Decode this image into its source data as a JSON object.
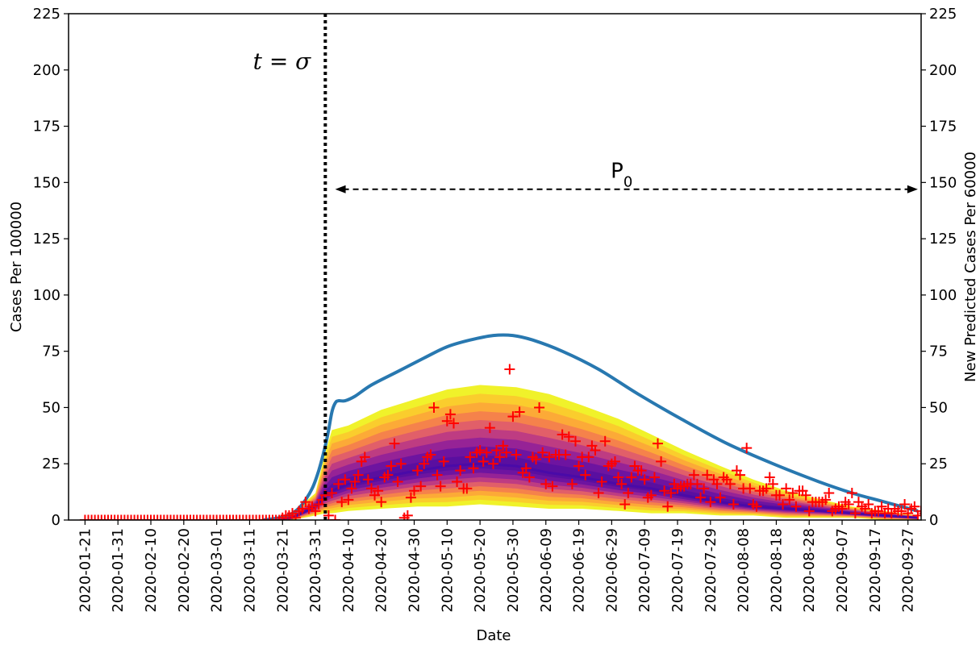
{
  "chart_data": {
    "type": "line",
    "x_type": "date",
    "ylabel_left": "Cases Per 100000",
    "ylabel_right": "New Predicted Cases Per 60000",
    "xlabel": "Date",
    "ylim_left": [
      0,
      225
    ],
    "ylim_right": [
      0,
      225
    ],
    "y_ticks": [
      0,
      25,
      50,
      75,
      100,
      125,
      150,
      175,
      200,
      225
    ],
    "xlim": [
      "2020-01-16",
      "2020-10-01"
    ],
    "x_ticks": [
      "2020-01-21",
      "2020-01-31",
      "2020-02-10",
      "2020-02-20",
      "2020-03-01",
      "2020-03-11",
      "2020-03-21",
      "2020-03-31",
      "2020-04-10",
      "2020-04-20",
      "2020-04-30",
      "2020-05-10",
      "2020-05-20",
      "2020-05-30",
      "2020-06-09",
      "2020-06-19",
      "2020-06-29",
      "2020-07-09",
      "2020-07-19",
      "2020-07-29",
      "2020-08-08",
      "2020-08-18",
      "2020-08-28",
      "2020-09-07",
      "2020-09-17",
      "2020-09-27"
    ],
    "grid": false,
    "colors": {
      "curve": "#2878b0",
      "observed": "#ff0000",
      "band_outer": "#f0f22a",
      "band_inner": "#5a0fa0"
    },
    "annotations": {
      "t_sigma_label": "t = σ",
      "t_sigma_date": "2020-04-03",
      "p0_label": "P",
      "p0_subscript": "0",
      "p0_arrow": {
        "from": "2020-04-06",
        "to": "2020-09-30",
        "y": 147
      }
    },
    "series": [
      {
        "kind": "line",
        "points": [
          [
            "2020-03-15",
            0
          ],
          [
            "2020-03-20",
            1
          ],
          [
            "2020-03-24",
            3
          ],
          [
            "2020-03-27",
            7
          ],
          [
            "2020-03-30",
            14
          ],
          [
            "2020-04-01",
            22
          ],
          [
            "2020-04-03",
            33
          ],
          [
            "2020-04-04",
            40
          ],
          [
            "2020-04-05",
            48
          ],
          [
            "2020-04-06",
            52
          ],
          [
            "2020-04-07",
            53
          ],
          [
            "2020-04-09",
            53
          ],
          [
            "2020-04-12",
            55
          ],
          [
            "2020-04-17",
            60
          ],
          [
            "2020-04-25",
            66
          ],
          [
            "2020-05-03",
            72
          ],
          [
            "2020-05-10",
            77
          ],
          [
            "2020-05-17",
            80
          ],
          [
            "2020-05-24",
            82
          ],
          [
            "2020-05-30",
            82
          ],
          [
            "2020-06-05",
            80
          ],
          [
            "2020-06-14",
            75
          ],
          [
            "2020-06-25",
            67
          ],
          [
            "2020-07-07",
            56
          ],
          [
            "2020-07-20",
            45
          ],
          [
            "2020-08-03",
            34
          ],
          [
            "2020-08-17",
            25
          ],
          [
            "2020-08-31",
            17
          ],
          [
            "2020-09-10",
            12
          ],
          [
            "2020-09-20",
            8
          ],
          [
            "2020-09-30",
            4
          ]
        ]
      },
      {
        "kind": "band",
        "points": [
          {
            "x": "2020-03-15",
            "mid": 0,
            "low": 0,
            "high": 0
          },
          {
            "x": "2020-03-24",
            "mid": 1,
            "low": 0,
            "high": 3
          },
          {
            "x": "2020-03-31",
            "mid": 6,
            "low": 2,
            "high": 12
          },
          {
            "x": "2020-04-03",
            "mid": 11,
            "low": 3,
            "high": 30
          },
          {
            "x": "2020-04-05",
            "mid": 13,
            "low": 3,
            "high": 40
          },
          {
            "x": "2020-04-10",
            "mid": 16,
            "low": 4,
            "high": 42
          },
          {
            "x": "2020-04-20",
            "mid": 19,
            "low": 5,
            "high": 49
          },
          {
            "x": "2020-05-01",
            "mid": 22,
            "low": 6,
            "high": 54
          },
          {
            "x": "2020-05-10",
            "mid": 24,
            "low": 6,
            "high": 58
          },
          {
            "x": "2020-05-20",
            "mid": 25,
            "low": 7,
            "high": 60
          },
          {
            "x": "2020-05-31",
            "mid": 24,
            "low": 6,
            "high": 59
          },
          {
            "x": "2020-06-10",
            "mid": 21,
            "low": 5,
            "high": 56
          },
          {
            "x": "2020-06-20",
            "mid": 19,
            "low": 5,
            "high": 51
          },
          {
            "x": "2020-07-01",
            "mid": 16,
            "low": 4,
            "high": 45
          },
          {
            "x": "2020-07-11",
            "mid": 14,
            "low": 3,
            "high": 38
          },
          {
            "x": "2020-07-21",
            "mid": 11,
            "low": 3,
            "high": 31
          },
          {
            "x": "2020-08-01",
            "mid": 8,
            "low": 2,
            "high": 24
          },
          {
            "x": "2020-08-11",
            "mid": 6,
            "low": 2,
            "high": 18
          },
          {
            "x": "2020-08-21",
            "mid": 5,
            "low": 1,
            "high": 13
          },
          {
            "x": "2020-09-01",
            "mid": 4,
            "low": 1,
            "high": 9
          },
          {
            "x": "2020-09-10",
            "mid": 3,
            "low": 1,
            "high": 6
          },
          {
            "x": "2020-09-20",
            "mid": 2,
            "low": 0,
            "high": 4
          },
          {
            "x": "2020-09-30",
            "mid": 1,
            "low": 0,
            "high": 2
          }
        ]
      },
      {
        "kind": "scatter",
        "marker": "+",
        "start": "2020-01-21",
        "step_days": 1,
        "values": [
          0,
          0,
          0,
          0,
          0,
          0,
          0,
          0,
          0,
          0,
          0,
          0,
          0,
          0,
          0,
          0,
          0,
          0,
          0,
          0,
          0,
          0,
          0,
          0,
          0,
          0,
          0,
          0,
          0,
          0,
          0,
          0,
          0,
          0,
          0,
          0,
          0,
          0,
          0,
          0,
          0,
          0,
          0,
          0,
          0,
          0,
          0,
          0,
          0,
          0,
          0,
          0,
          0,
          0,
          0,
          0,
          0,
          0,
          0,
          0,
          1,
          2,
          2,
          3,
          1,
          4,
          5,
          8,
          5,
          6,
          4,
          7,
          9,
          11,
          2,
          12,
          0,
          16,
          8,
          18,
          9,
          14,
          17,
          20,
          26,
          28,
          18,
          14,
          11,
          13,
          8,
          19,
          20,
          24,
          34,
          17,
          25,
          1,
          2,
          10,
          13,
          22,
          15,
          25,
          28,
          29,
          50,
          20,
          15,
          26,
          44,
          47,
          43,
          17,
          22,
          14,
          14,
          28,
          23,
          30,
          31,
          26,
          30,
          41,
          25,
          31,
          28,
          33,
          30,
          67,
          46,
          29,
          48,
          21,
          23,
          19,
          28,
          27,
          50,
          30,
          16,
          28,
          15,
          29,
          29,
          38,
          29,
          37,
          16,
          35,
          24,
          28,
          20,
          28,
          33,
          31,
          12,
          17,
          35,
          24,
          25,
          26,
          19,
          16,
          7,
          12,
          19,
          24,
          22,
          22,
          18,
          10,
          11,
          19,
          34,
          26,
          13,
          6,
          12,
          16,
          14,
          15,
          15,
          16,
          16,
          20,
          16,
          10,
          14,
          20,
          8,
          18,
          16,
          10,
          19,
          18,
          16,
          7,
          22,
          20,
          14,
          32,
          14,
          7,
          6,
          13,
          13,
          14,
          19,
          16,
          11,
          11,
          7,
          14,
          9,
          12,
          6,
          13,
          13,
          11,
          4,
          8,
          8,
          8,
          8,
          9,
          12,
          4,
          5,
          6,
          5,
          8,
          7,
          12,
          3,
          8,
          6,
          5,
          7,
          3,
          4,
          4,
          6,
          3,
          5,
          3,
          5,
          4,
          4,
          7,
          3,
          5,
          6,
          2,
          4,
          3,
          4,
          4,
          5,
          2,
          2,
          5,
          4,
          3,
          4,
          5,
          4,
          2,
          3,
          2,
          3
        ]
      }
    ]
  }
}
